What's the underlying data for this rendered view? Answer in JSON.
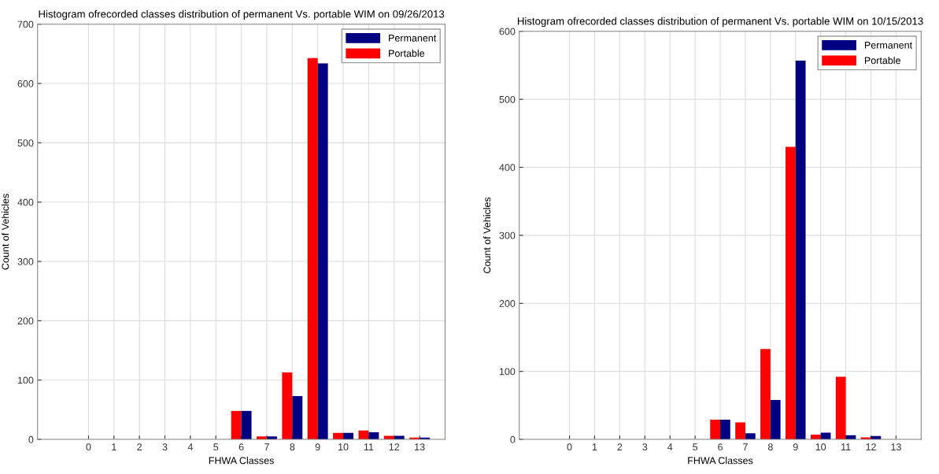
{
  "chart_data": [
    {
      "type": "bar",
      "title": "Histogram ofrecorded classes distribution of permanent Vs. portable WIM on 09/26/2013",
      "xlabel": "FHWA Classes",
      "ylabel": "Count of Vehicles",
      "x": [
        6,
        7,
        8,
        9,
        10,
        11,
        12,
        13
      ],
      "series": [
        {
          "name": "Portable",
          "color": "#ff0000",
          "values": [
            48,
            5,
            113,
            643,
            11,
            15,
            6,
            3
          ]
        },
        {
          "name": "Permanent",
          "color": "#000080",
          "values": [
            48,
            5,
            73,
            634,
            11,
            12,
            6,
            3
          ]
        }
      ],
      "xlim": [
        -2,
        14
      ],
      "xticks": [
        0,
        1,
        2,
        3,
        4,
        5,
        6,
        7,
        8,
        9,
        10,
        11,
        12,
        13
      ],
      "ylim": [
        0,
        700
      ],
      "yticks": [
        0,
        100,
        200,
        300,
        400,
        500,
        600,
        700
      ],
      "grid": true,
      "legend": "top right"
    },
    {
      "type": "bar",
      "title": "Histogram ofrecorded classes distribution of permanent Vs. portable WIM on 10/15/2013",
      "xlabel": "FHWA Classes",
      "ylabel": "Count of Vehicles",
      "x": [
        6,
        7,
        8,
        9,
        10,
        11,
        12
      ],
      "series": [
        {
          "name": "Portable",
          "color": "#ff0000",
          "values": [
            29,
            25,
            133,
            430,
            7,
            92,
            3
          ]
        },
        {
          "name": "Permanent",
          "color": "#000080",
          "values": [
            29,
            9,
            58,
            557,
            10,
            6,
            5
          ]
        }
      ],
      "xlim": [
        -2,
        14
      ],
      "xticks": [
        0,
        1,
        2,
        3,
        4,
        5,
        6,
        7,
        8,
        9,
        10,
        11,
        12,
        13
      ],
      "ylim": [
        0,
        600
      ],
      "yticks": [
        0,
        100,
        200,
        300,
        400,
        500,
        600
      ],
      "grid": true,
      "legend": "top right"
    }
  ]
}
